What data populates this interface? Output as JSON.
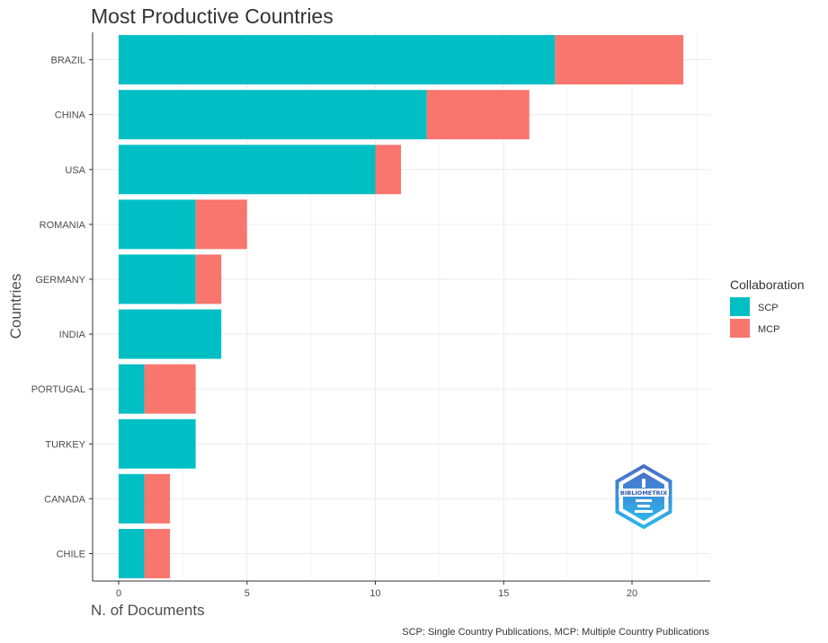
{
  "chart_data": {
    "type": "bar",
    "orientation": "horizontal",
    "stacked": true,
    "title": "Most Productive Countries",
    "xlabel": "N. of Documents",
    "ylabel": "Countries",
    "xlim": [
      0,
      23
    ],
    "xticks": [
      0,
      5,
      10,
      15,
      20
    ],
    "categories": [
      "BRAZIL",
      "CHINA",
      "USA",
      "ROMANIA",
      "GERMANY",
      "INDIA",
      "PORTUGAL",
      "TURKEY",
      "CANADA",
      "CHILE"
    ],
    "series": [
      {
        "name": "SCP",
        "color": "#00BFC4",
        "values": [
          17,
          12,
          10,
          3,
          3,
          4,
          1,
          3,
          1,
          1
        ]
      },
      {
        "name": "MCP",
        "color": "#F8766D",
        "values": [
          5,
          4,
          1,
          2,
          1,
          0,
          2,
          0,
          1,
          1
        ]
      }
    ],
    "legend": {
      "title": "Collaboration",
      "placement": "right"
    },
    "grid": true,
    "caption": "SCP: Single Country Publications, MCP: Multiple Country Publications"
  },
  "logo": {
    "text": "BIBLIOMETRIX",
    "icon": "bibliometrix-logo-icon"
  }
}
